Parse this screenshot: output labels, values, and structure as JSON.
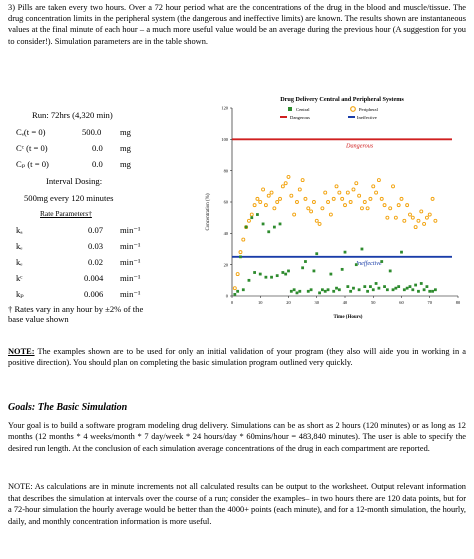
{
  "intro": "3) Pills are taken every two hours. Over a 72 hour period what are the concentrations of the drug in the blood and muscle/tissue. The drug concentration limits in the peripheral system (the dangerous and ineffective limits) are known. The results shown are instantaneous values at the final minute of each hour – a much more useful value would be an average during the previous hour (A suggestion for you to consider!). Simulation parameters are in the table shown.",
  "params": {
    "run": "Run: 72hrs (4,320 min)",
    "init": [
      {
        "label": "Cₑ(t = 0)",
        "value": "500.0",
        "unit": "mg"
      },
      {
        "label": "Cᶜ (t = 0)",
        "value": "0.0",
        "unit": "mg"
      },
      {
        "label": "Cₚ (t = 0)",
        "value": "0.0",
        "unit": "mg"
      }
    ],
    "dosing_title": "Interval Dosing:",
    "dosing": "500mg every 120 minutes",
    "rate_header": "Rate Parameters†",
    "rates": [
      {
        "label": "kₐ",
        "value": "0.07",
        "unit": "min⁻¹"
      },
      {
        "label": "kₑ",
        "value": "0.03",
        "unit": "min⁻¹"
      },
      {
        "label": "kₑ",
        "value": "0.02",
        "unit": "min⁻¹"
      },
      {
        "label": "kᶜ",
        "value": "0.004",
        "unit": "min⁻¹"
      },
      {
        "label": "kₚ",
        "value": "0.006",
        "unit": "min⁻¹"
      }
    ],
    "footnote": "† Rates vary in any hour by ±2% of the base value shown"
  },
  "chart_data": {
    "type": "scatter",
    "title": "Drug Delivery Central and Peripheral Systems",
    "legend": [
      "Central",
      "Peripheral",
      "Dangerous",
      "Ineffective"
    ],
    "xlabel": "Time (Hours)",
    "ylabel": "Concentration (%)",
    "xticks": [
      0,
      10,
      20,
      30,
      40,
      50,
      60,
      70,
      80
    ],
    "yticks": [
      0,
      20,
      40,
      60,
      80,
      100,
      120
    ],
    "xlim": [
      0,
      80
    ],
    "ylim": [
      0,
      120
    ],
    "dangerous_level": 100,
    "ineffective_level": 25,
    "dangerous_label": "Dangerous",
    "ineffective_label": "Ineffective",
    "colors": {
      "central": "#2e8b2e",
      "peripheral": "#f2a20c",
      "dangerous": "#d02020",
      "ineffective": "#1a3da8"
    },
    "central": [
      [
        1,
        1
      ],
      [
        2,
        3
      ],
      [
        3,
        25
      ],
      [
        4,
        4
      ],
      [
        5,
        44
      ],
      [
        6,
        10
      ],
      [
        7,
        50
      ],
      [
        8,
        15
      ],
      [
        9,
        52
      ],
      [
        10,
        14
      ],
      [
        11,
        46
      ],
      [
        12,
        12
      ],
      [
        13,
        41
      ],
      [
        14,
        12
      ],
      [
        15,
        44
      ],
      [
        16,
        13
      ],
      [
        17,
        46
      ],
      [
        18,
        15
      ],
      [
        19,
        14
      ],
      [
        20,
        16
      ],
      [
        21,
        3
      ],
      [
        22,
        4
      ],
      [
        23,
        2
      ],
      [
        24,
        3
      ],
      [
        25,
        18
      ],
      [
        26,
        22
      ],
      [
        27,
        3
      ],
      [
        28,
        4
      ],
      [
        29,
        16
      ],
      [
        30,
        27
      ],
      [
        31,
        2
      ],
      [
        32,
        4
      ],
      [
        33,
        3
      ],
      [
        34,
        4
      ],
      [
        35,
        14
      ],
      [
        36,
        3
      ],
      [
        37,
        5
      ],
      [
        38,
        4
      ],
      [
        39,
        17
      ],
      [
        40,
        28
      ],
      [
        41,
        6
      ],
      [
        42,
        3
      ],
      [
        43,
        5
      ],
      [
        44,
        20
      ],
      [
        45,
        4
      ],
      [
        46,
        30
      ],
      [
        47,
        6
      ],
      [
        48,
        3
      ],
      [
        49,
        6
      ],
      [
        50,
        4
      ],
      [
        51,
        8
      ],
      [
        52,
        5
      ],
      [
        53,
        22
      ],
      [
        54,
        6
      ],
      [
        55,
        4
      ],
      [
        56,
        16
      ],
      [
        57,
        4
      ],
      [
        58,
        5
      ],
      [
        59,
        6
      ],
      [
        60,
        28
      ],
      [
        61,
        4
      ],
      [
        62,
        5
      ],
      [
        63,
        6
      ],
      [
        64,
        4
      ],
      [
        65,
        7
      ],
      [
        66,
        3
      ],
      [
        67,
        8
      ],
      [
        68,
        4
      ],
      [
        69,
        6
      ],
      [
        70,
        3
      ],
      [
        71,
        3
      ],
      [
        72,
        4
      ]
    ],
    "peripheral": [
      [
        1,
        5
      ],
      [
        2,
        14
      ],
      [
        3,
        28
      ],
      [
        4,
        36
      ],
      [
        5,
        44
      ],
      [
        6,
        48
      ],
      [
        7,
        52
      ],
      [
        8,
        58
      ],
      [
        9,
        62
      ],
      [
        10,
        60
      ],
      [
        11,
        68
      ],
      [
        12,
        58
      ],
      [
        13,
        64
      ],
      [
        14,
        66
      ],
      [
        15,
        56
      ],
      [
        16,
        60
      ],
      [
        17,
        62
      ],
      [
        18,
        70
      ],
      [
        19,
        72
      ],
      [
        20,
        76
      ],
      [
        21,
        64
      ],
      [
        22,
        52
      ],
      [
        23,
        60
      ],
      [
        24,
        68
      ],
      [
        25,
        74
      ],
      [
        26,
        62
      ],
      [
        27,
        56
      ],
      [
        28,
        54
      ],
      [
        29,
        60
      ],
      [
        30,
        48
      ],
      [
        31,
        46
      ],
      [
        32,
        56
      ],
      [
        33,
        66
      ],
      [
        34,
        60
      ],
      [
        35,
        52
      ],
      [
        36,
        62
      ],
      [
        37,
        70
      ],
      [
        38,
        66
      ],
      [
        39,
        62
      ],
      [
        40,
        58
      ],
      [
        41,
        66
      ],
      [
        42,
        60
      ],
      [
        43,
        68
      ],
      [
        44,
        72
      ],
      [
        45,
        64
      ],
      [
        46,
        56
      ],
      [
        47,
        60
      ],
      [
        48,
        56
      ],
      [
        49,
        62
      ],
      [
        50,
        70
      ],
      [
        51,
        66
      ],
      [
        52,
        74
      ],
      [
        53,
        62
      ],
      [
        54,
        58
      ],
      [
        55,
        50
      ],
      [
        56,
        56
      ],
      [
        57,
        70
      ],
      [
        58,
        50
      ],
      [
        59,
        58
      ],
      [
        60,
        62
      ],
      [
        61,
        48
      ],
      [
        62,
        58
      ],
      [
        63,
        52
      ],
      [
        64,
        50
      ],
      [
        65,
        44
      ],
      [
        66,
        48
      ],
      [
        67,
        54
      ],
      [
        68,
        46
      ],
      [
        69,
        50
      ],
      [
        70,
        52
      ],
      [
        71,
        62
      ],
      [
        72,
        48
      ]
    ]
  },
  "note_label": "NOTE:",
  "note": " The examples shown are to be used for only an initial validation of your program (they also will aide you in working in a positive direction). You should plan on completing the basic simulation program outlined very quickly.",
  "goals_title": "Goals: The Basic Simulation",
  "goals": "Your goal is to build a software program modeling drug delivery. Simulations can be as short as 2 hours (120 minutes) or as long as 12 months (12 months * 4 weeks/month * 7 day/week * 24 hours/day * 60mins/hour = 483,840 minutes). The user is able to specify the desired run length. At the conclusion of each simulation average concentrations of the drug in each compartment are reported.",
  "note2": "NOTE: As calculations are in minute increments not all calculated results can be output to the worksheet. Output relevant information that describes the simulation at intervals over the course of a run; consider the examples– in two hours there are 120 data points, but for a 72-hour simulation the hourly average would be better than the 4000+ points (each minute), and for a 12-month simulation, the hourly, daily, and monthly concentration information is more useful."
}
